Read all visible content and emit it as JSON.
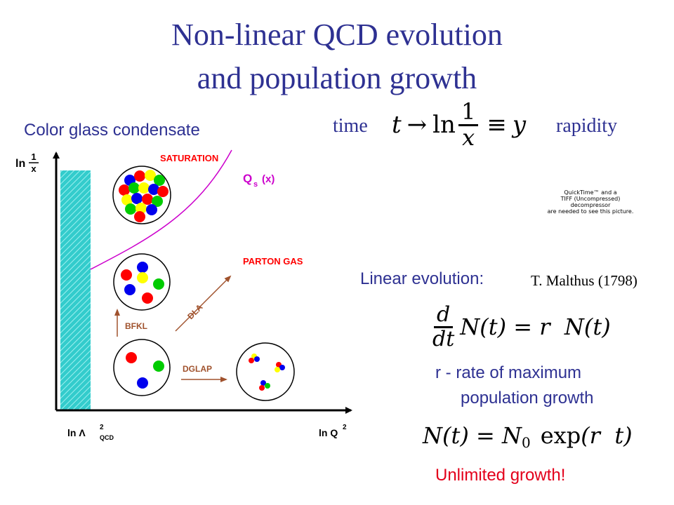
{
  "title": {
    "line1": "Non-linear QCD evolution",
    "line2": "and population growth"
  },
  "cgc_label": "Color glass condensate",
  "time_label": "time",
  "rapidity_label": "rapidity",
  "time_eq": {
    "t": "t",
    "arrow": "→",
    "ln": "ln",
    "num": "1",
    "den": "x",
    "equiv": "≡",
    "y": "y"
  },
  "quicktime_notice": {
    "line1": "QuickTime™ and a",
    "line2": "TIFF (Uncompressed) decompressor",
    "line3": "are needed to see this picture."
  },
  "linear_evolution_label": "Linear evolution:",
  "malthus_label": "T. Malthus (1798)",
  "diff_eq": {
    "d": "d",
    "dt": "dt",
    "lhs": "N(t) = r  N(t)"
  },
  "rate_line1": "r - rate of maximum",
  "rate_line2": "population growth",
  "solution_eq": {
    "lhs": "N(t) = N",
    "sub": "0",
    "exp": "exp",
    "arg": "(r  t)"
  },
  "unlimited_label": "Unlimited growth!",
  "diagram": {
    "y_axis": {
      "ln": "ln",
      "num": "1",
      "den": "x"
    },
    "x_axis_left": {
      "ln": "ln Λ",
      "sup": "2",
      "sub": "QCD"
    },
    "x_axis_right": {
      "ln": "ln Q",
      "sup": "2"
    },
    "saturation": "SATURATION",
    "qs_q": "Q",
    "qs_sub": "s",
    "qs_arg": "(x)",
    "parton_gas": "PARTON GAS",
    "bfkl": "BFKL",
    "dla": "DLA",
    "dglap": "DGLAP"
  },
  "colors": {
    "title": "#2e3192",
    "cgc_label": "#2e3192",
    "red_text": "#e3001b",
    "diagram_red": "#ff0000",
    "saturation_curve": "#cc00cc",
    "band": "#33cccc",
    "arrow": "#a0522d"
  }
}
